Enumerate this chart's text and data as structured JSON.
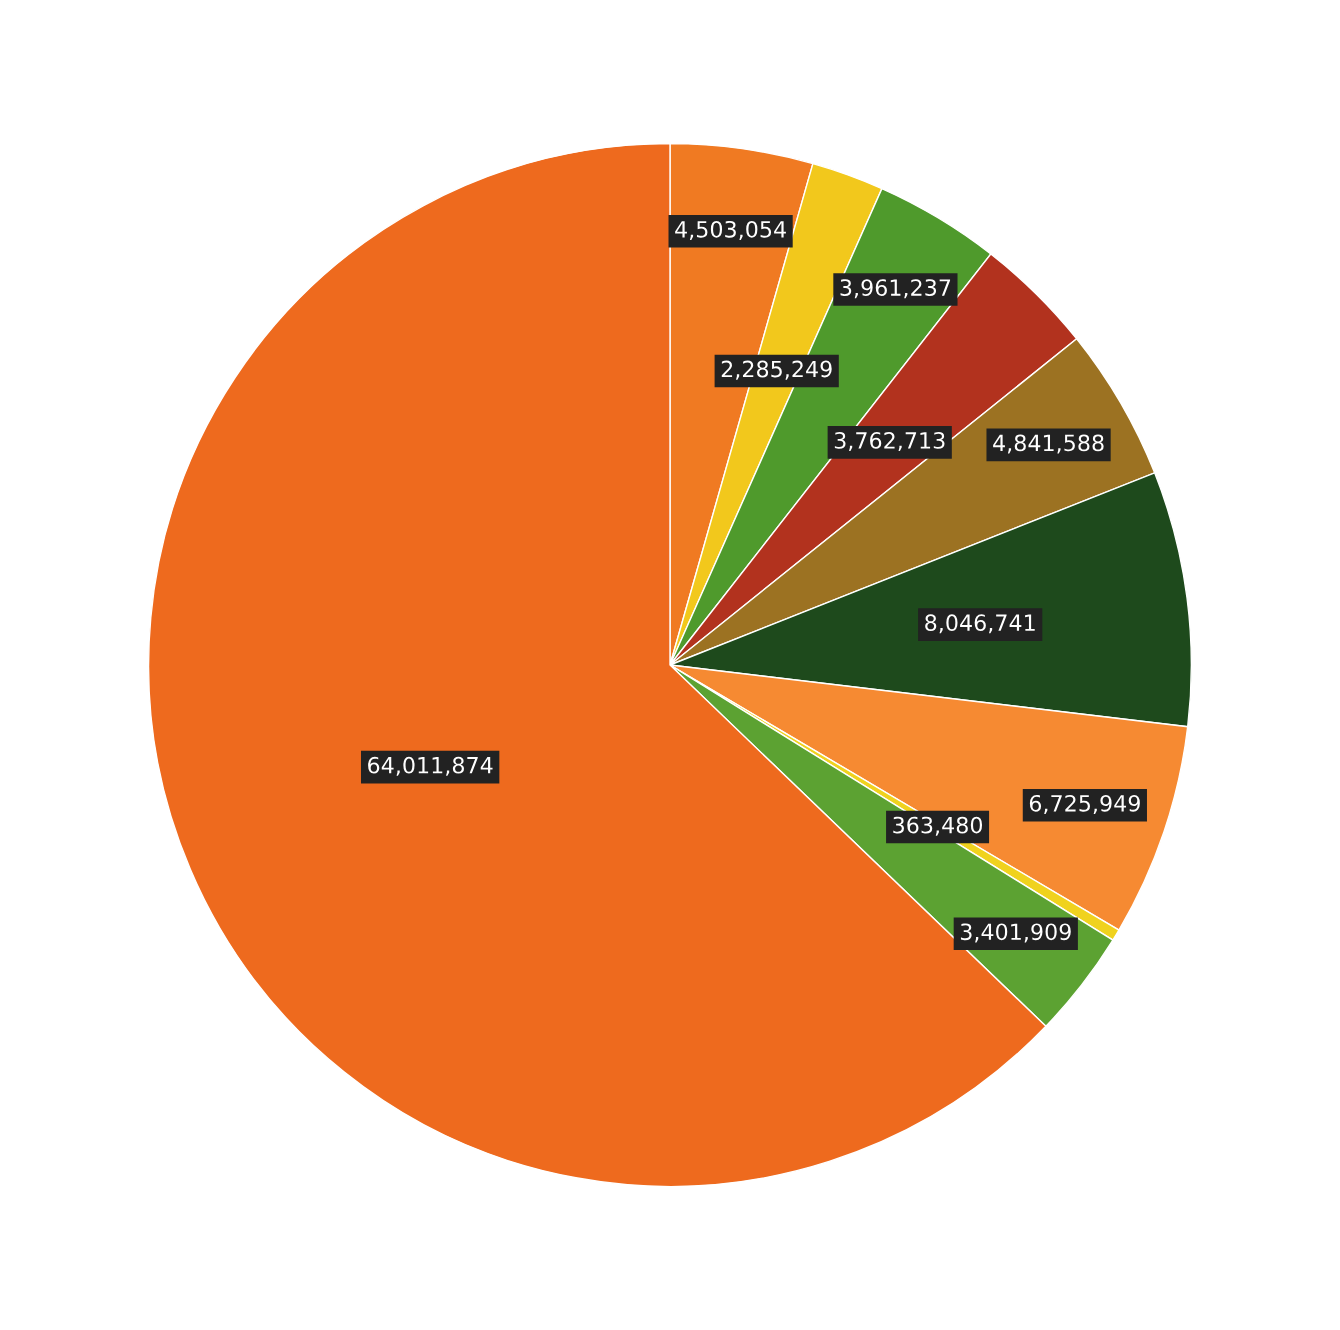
{
  "chart_data": {
    "type": "pie",
    "categories": [
      null,
      null,
      null,
      null,
      null,
      null,
      null,
      null,
      null,
      null
    ],
    "values": [
      4503054,
      2285249,
      3961237,
      3762713,
      4841588,
      8046741,
      6725949,
      363480,
      3401909,
      64011874
    ],
    "colors": [
      "#f07a22",
      "#f2c81c",
      "#4f9a2c",
      "#b2321e",
      "#9c7222",
      "#1e4a1c",
      "#f68a32",
      "#f0d21e",
      "#5ca232",
      "#ee6a1e"
    ],
    "value_labels": [
      "4,503,054",
      "2,285,249",
      "3,961,237",
      "3,762,713",
      "4,841,588",
      "8,046,741",
      "6,725,949",
      "363,480",
      "3,401,909",
      "64,011,874"
    ],
    "legend": false
  }
}
